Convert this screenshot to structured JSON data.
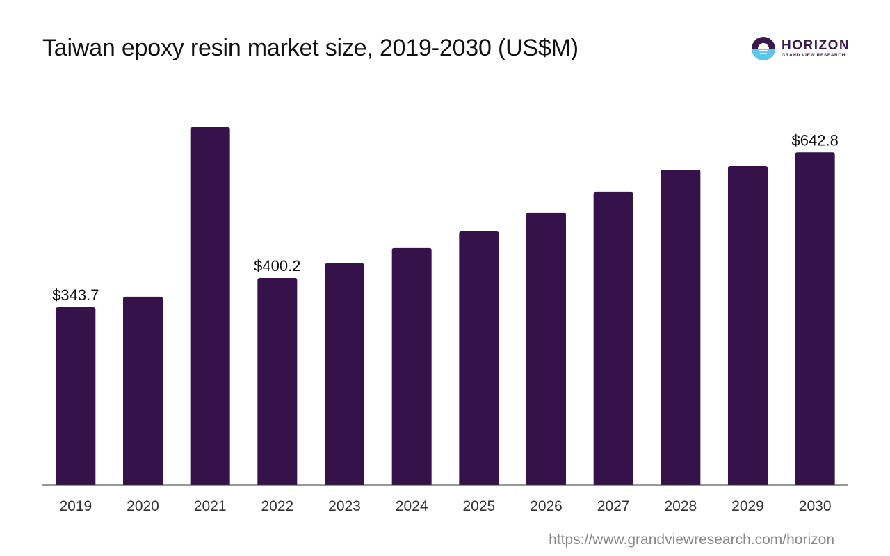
{
  "title": "Taiwan epoxy resin market size, 2019-2030 (US$M)",
  "logo": {
    "icon": "horizon-logo-icon",
    "name": "HORIZON",
    "sub": "GRAND VIEW RESEARCH"
  },
  "source": "https://www.grandviewresearch.com/horizon",
  "colors": {
    "bar": "#36124a",
    "axis": "#333333",
    "label": "#111111",
    "tick": "#333333"
  },
  "chart_data": {
    "type": "bar",
    "title": "Taiwan epoxy resin market size, 2019-2030 (US$M)",
    "xlabel": "",
    "ylabel": "",
    "categories": [
      "2019",
      "2020",
      "2021",
      "2022",
      "2023",
      "2024",
      "2025",
      "2026",
      "2027",
      "2028",
      "2029",
      "2030"
    ],
    "values": [
      343.7,
      364.0,
      691.6,
      400.2,
      428.4,
      458.0,
      490.2,
      526.5,
      566.8,
      609.7,
      616.4,
      642.8
    ],
    "data_labels": [
      {
        "index": 0,
        "text": "$343.7"
      },
      {
        "index": 3,
        "text": "$400.2"
      },
      {
        "index": 11,
        "text": "$642.8"
      }
    ],
    "ylim": [
      0,
      700
    ],
    "grid": false,
    "legend": "none"
  }
}
